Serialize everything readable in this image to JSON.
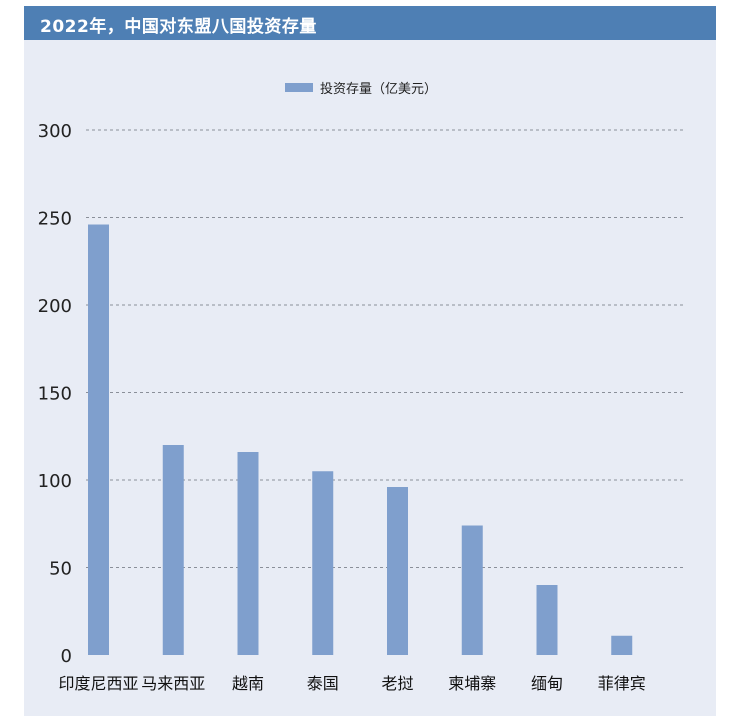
{
  "title": "2022年，中国对东盟八国投资存量",
  "colors": {
    "bar": "#7f9fcd",
    "title_bg": "#4e7fb4",
    "panel_bg": "#e8ecf5",
    "grid": "#8a8f99"
  },
  "chart_data": {
    "type": "bar",
    "categories": [
      "印度尼西亚",
      "马来西亚",
      "越南",
      "泰国",
      "老挝",
      "柬埔寨",
      "缅甸",
      "菲律宾"
    ],
    "series": [
      {
        "name": "投资存量（亿美元）",
        "values": [
          246,
          120,
          116,
          105,
          96,
          74,
          40,
          11
        ]
      }
    ],
    "yticks": [
      0,
      50,
      100,
      150,
      200,
      250,
      300
    ],
    "ylim": [
      0,
      300
    ],
    "grid": true,
    "legend_position": "top-center"
  }
}
